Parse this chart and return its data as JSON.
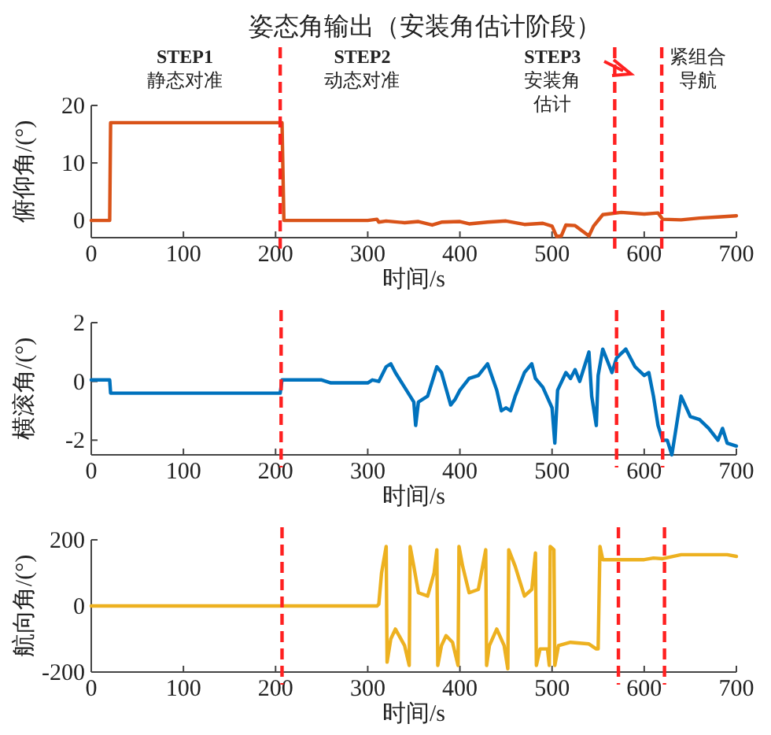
{
  "chart_data": [
    {
      "type": "line",
      "title": "姿态角输出（安装角估计阶段）",
      "xlabel": "时间/s",
      "ylabel": "俯仰角/(°)",
      "series": [
        {
          "color": "#d95319",
          "x": [
            0,
            20,
            21,
            207,
            209,
            300,
            310,
            312,
            320,
            340,
            355,
            370,
            380,
            400,
            410,
            430,
            450,
            470,
            490,
            500,
            505,
            510,
            515,
            525,
            540,
            545,
            555,
            575,
            600,
            615,
            620,
            640,
            660,
            680,
            700
          ],
          "values": [
            0,
            0,
            17,
            17,
            0,
            0,
            0.2,
            -0.3,
            -0.1,
            -0.4,
            -0.2,
            -0.8,
            -0.3,
            -0.2,
            -0.6,
            -0.3,
            -0.1,
            -0.7,
            -0.5,
            -1,
            -2.8,
            -2.7,
            -0.8,
            -0.9,
            -2.7,
            -1.0,
            1.0,
            1.4,
            1.1,
            1.3,
            0.2,
            0.1,
            0.4,
            0.6,
            0.8
          ]
        }
      ],
      "xlim": [
        0,
        700
      ],
      "xticks": [
        0,
        100,
        200,
        300,
        400,
        500,
        600,
        700
      ],
      "ylim": [
        -3,
        20
      ],
      "yticks": [
        0,
        10,
        20
      ],
      "ref_lines": [
        {
          "axis": "x",
          "value": 205,
          "color": "#ff2020",
          "line_style": "dashed"
        },
        {
          "axis": "x",
          "value": 568,
          "color": "#ff2020",
          "line_style": "dashed"
        },
        {
          "axis": "x",
          "value": 619,
          "color": "#ff2020",
          "line_style": "dashed"
        }
      ],
      "annotations": [
        "STEP1\n静态对准",
        "STEP2\n动态对准",
        "STEP3\n安装角估计",
        "紧组合导航"
      ]
    },
    {
      "type": "line",
      "xlabel": "时间/s",
      "ylabel": "横滚角/(°)",
      "series": [
        {
          "color": "#0072bd",
          "x": [
            0,
            20,
            21,
            205,
            207,
            250,
            260,
            300,
            305,
            312,
            320,
            325,
            330,
            340,
            350,
            352,
            355,
            365,
            375,
            380,
            390,
            395,
            400,
            410,
            420,
            430,
            440,
            445,
            450,
            455,
            460,
            470,
            478,
            482,
            490,
            500,
            503,
            506,
            515,
            520,
            525,
            530,
            535,
            540,
            543,
            548,
            550,
            555,
            560,
            565,
            570,
            580,
            590,
            600,
            605,
            610,
            615,
            620,
            625,
            630,
            640,
            650,
            660,
            670,
            680,
            685,
            690,
            700
          ],
          "values": [
            0.05,
            0.05,
            -0.4,
            -0.4,
            0.05,
            0.05,
            -0.05,
            -0.05,
            0.05,
            0,
            0.5,
            0.6,
            0.3,
            -0.2,
            -0.7,
            -1.5,
            -0.7,
            -0.5,
            0.5,
            0.3,
            -0.8,
            -0.6,
            -0.3,
            0.1,
            0.2,
            0.6,
            -0.3,
            -1.0,
            -0.9,
            -1.0,
            -0.5,
            0.3,
            0.6,
            0.1,
            -0.2,
            -0.9,
            -2.1,
            -0.3,
            0.3,
            0.1,
            0.4,
            0.0,
            0.5,
            1.0,
            -0.5,
            -1.5,
            0.2,
            1.1,
            0.7,
            0.3,
            0.8,
            1.1,
            0.5,
            0.2,
            0.3,
            -0.5,
            -1.5,
            -2.0,
            -2.0,
            -2.5,
            -0.5,
            -1.2,
            -1.3,
            -1.6,
            -2.0,
            -1.6,
            -2.1,
            -2.2
          ]
        }
      ],
      "xlim": [
        0,
        700
      ],
      "xticks": [
        0,
        100,
        200,
        300,
        400,
        500,
        600,
        700
      ],
      "ylim": [
        -2.5,
        2
      ],
      "yticks": [
        {
          "value": -2,
          "label": "-2"
        },
        0,
        2
      ],
      "ref_lines": [
        {
          "axis": "x",
          "value": 206,
          "color": "#ff2020",
          "line_style": "dashed"
        },
        {
          "axis": "x",
          "value": 570,
          "color": "#ff2020",
          "line_style": "dashed"
        },
        {
          "axis": "x",
          "value": 620,
          "color": "#ff2020",
          "line_style": "dashed"
        }
      ]
    },
    {
      "type": "line",
      "xlabel": "时间/s",
      "ylabel": "航向角/(°)",
      "series": [
        {
          "color": "#edb120",
          "x": [
            0,
            310,
            312,
            315,
            320,
            321,
            325,
            330,
            340,
            345,
            346,
            350,
            355,
            365,
            372,
            375,
            376,
            380,
            385,
            392,
            398,
            399,
            403,
            410,
            420,
            428,
            429,
            432,
            440,
            448,
            452,
            453,
            460,
            470,
            478,
            482,
            483,
            487,
            495,
            497,
            498,
            502,
            503,
            507,
            520,
            540,
            548,
            550,
            552,
            555,
            600,
            610,
            620,
            640,
            690,
            700
          ],
          "values": [
            0,
            0,
            5,
            100,
            180,
            -170,
            -100,
            -70,
            -120,
            -180,
            180,
            120,
            40,
            30,
            100,
            170,
            -180,
            -120,
            -90,
            -110,
            -180,
            180,
            120,
            40,
            50,
            170,
            -180,
            -120,
            -70,
            -120,
            -190,
            170,
            120,
            30,
            50,
            160,
            -180,
            -130,
            -130,
            -180,
            180,
            170,
            -180,
            -120,
            -110,
            -115,
            -130,
            -130,
            180,
            140,
            140,
            145,
            143,
            155,
            155,
            150
          ]
        }
      ],
      "xlim": [
        0,
        700
      ],
      "xticks": [
        0,
        100,
        200,
        300,
        400,
        500,
        600,
        700
      ],
      "ylim": [
        -200,
        200
      ],
      "yticks": [
        {
          "value": -200,
          "label": "-200"
        },
        0,
        200
      ],
      "ref_lines": [
        {
          "axis": "x",
          "value": 207,
          "color": "#ff2020",
          "line_style": "dashed"
        },
        {
          "axis": "x",
          "value": 572,
          "color": "#ff2020",
          "line_style": "dashed"
        },
        {
          "axis": "x",
          "value": 622,
          "color": "#ff2020",
          "line_style": "dashed"
        }
      ]
    }
  ]
}
